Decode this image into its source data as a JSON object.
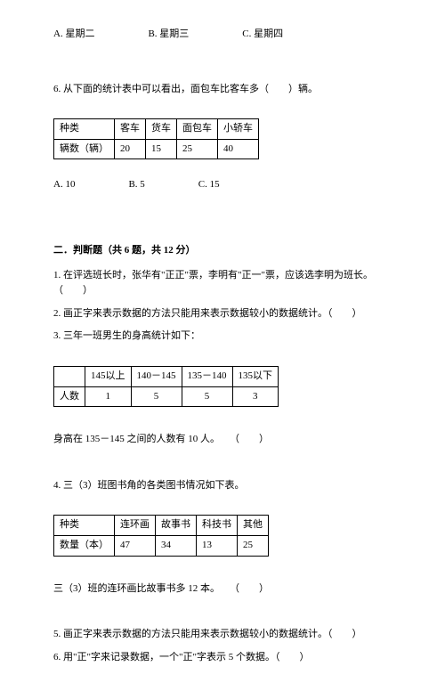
{
  "q5_options": {
    "a": "A. 星期二",
    "b": "B. 星期三",
    "c": "C. 星期四"
  },
  "q6": {
    "text": "6. 从下面的统计表中可以看出，面包车比客车多（　　）辆。",
    "table": {
      "h0": "种类",
      "h1": "客车",
      "h2": "货车",
      "h3": "面包车",
      "h4": "小轿车",
      "r0": "辆数（辆）",
      "r1": "20",
      "r2": "15",
      "r3": "25",
      "r4": "40"
    },
    "a": "A. 10",
    "b": "B. 5",
    "c": "C. 15"
  },
  "section2": {
    "title": "二．判断题（共 6 题，共 12 分）",
    "q1": "1. 在评选班长时，张华有\"正正\"票，李明有\"正一\"票，应该选李明为班长。　（　　）",
    "q2": "2. 画正字来表示数据的方法只能用来表示数据较小的数据统计。（　　）",
    "q3": {
      "text": "3. 三年一班男生的身高统计如下：",
      "table": {
        "h0": "",
        "h1": "145以上",
        "h2": "140－145",
        "h3": "135－140",
        "h4": "135以下",
        "r0": "人数",
        "r1": "1",
        "r2": "5",
        "r3": "5",
        "r4": "3"
      },
      "after": "身高在 135－145 之间的人数有 10 人。　　（　　）"
    },
    "q4": {
      "text": "4. 三（3）班图书角的各类图书情况如下表。",
      "table": {
        "h0": "种类",
        "h1": "连环画",
        "h2": "故事书",
        "h3": "科技书",
        "h4": "其他",
        "r0": "数量（本）",
        "r1": "47",
        "r2": "34",
        "r3": "13",
        "r4": "25"
      },
      "after": "三（3）班的连环画比故事书多 12 本。　　（　　）"
    },
    "q5": "5. 画正字来表示数据的方法只能用来表示数据较小的数据统计。（　　）",
    "q6": "6. 用\"正\"字来记录数据，一个\"正\"字表示 5 个数据。（　　）"
  }
}
